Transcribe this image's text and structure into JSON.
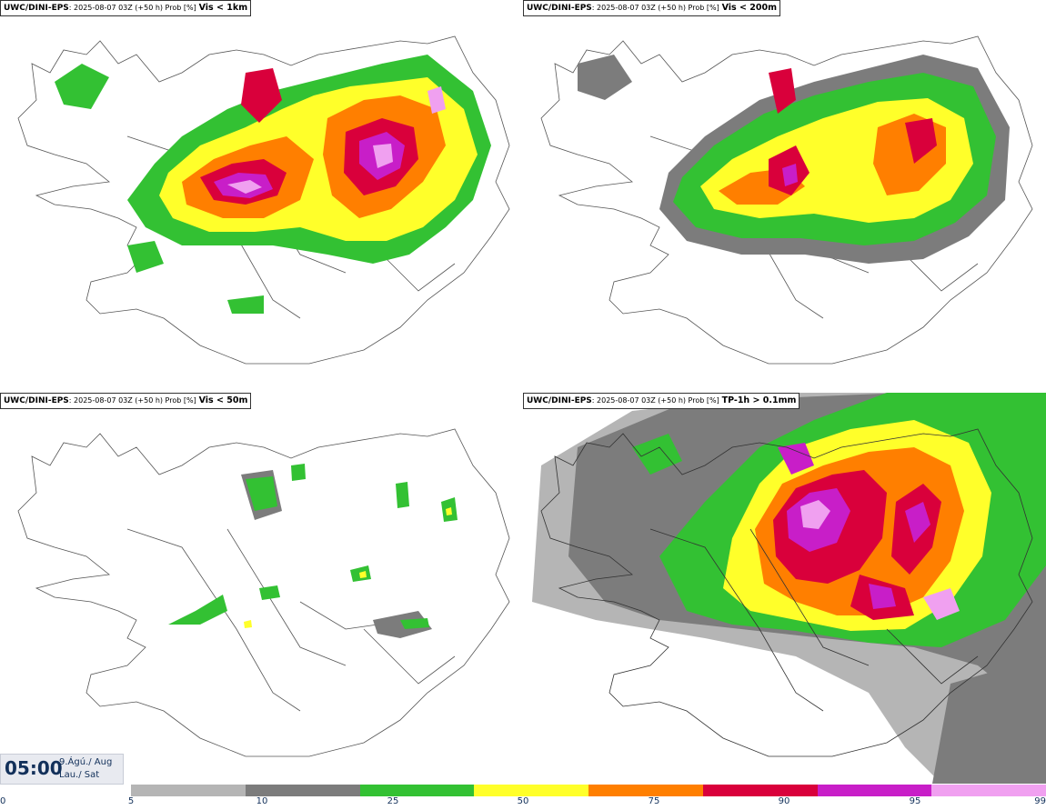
{
  "panels": [
    {
      "source": "UWC/DINI-EPS",
      "meta": ": 2025-08-07 03Z (+50 h) Prob [%]",
      "variable": "Vis < 1km"
    },
    {
      "source": "UWC/DINI-EPS",
      "meta": ": 2025-08-07 03Z (+50 h) Prob [%]",
      "variable": "Vis < 200m"
    },
    {
      "source": "UWC/DINI-EPS",
      "meta": ": 2025-08-07 03Z (+50 h) Prob [%]",
      "variable": "Vis < 50m"
    },
    {
      "source": "UWC/DINI-EPS",
      "meta": ": 2025-08-07 03Z (+50 h) Prob [%]",
      "variable": "TP-1h > 0.1mm"
    }
  ],
  "valid_time": {
    "time": "05:00",
    "date_line1": "9.Ágú./ Aug",
    "date_line2": "Lau./ Sat"
  },
  "legend": {
    "ticks": [
      "0",
      "5",
      "10",
      "25",
      "50",
      "75",
      "90",
      "95",
      "99"
    ],
    "colors": [
      "#b5b5b5",
      "#7c7c7c",
      "#33c133",
      "#ffff2a",
      "#ff7f00",
      "#d9003b",
      "#c81ec8",
      "#f0a0f0"
    ]
  }
}
